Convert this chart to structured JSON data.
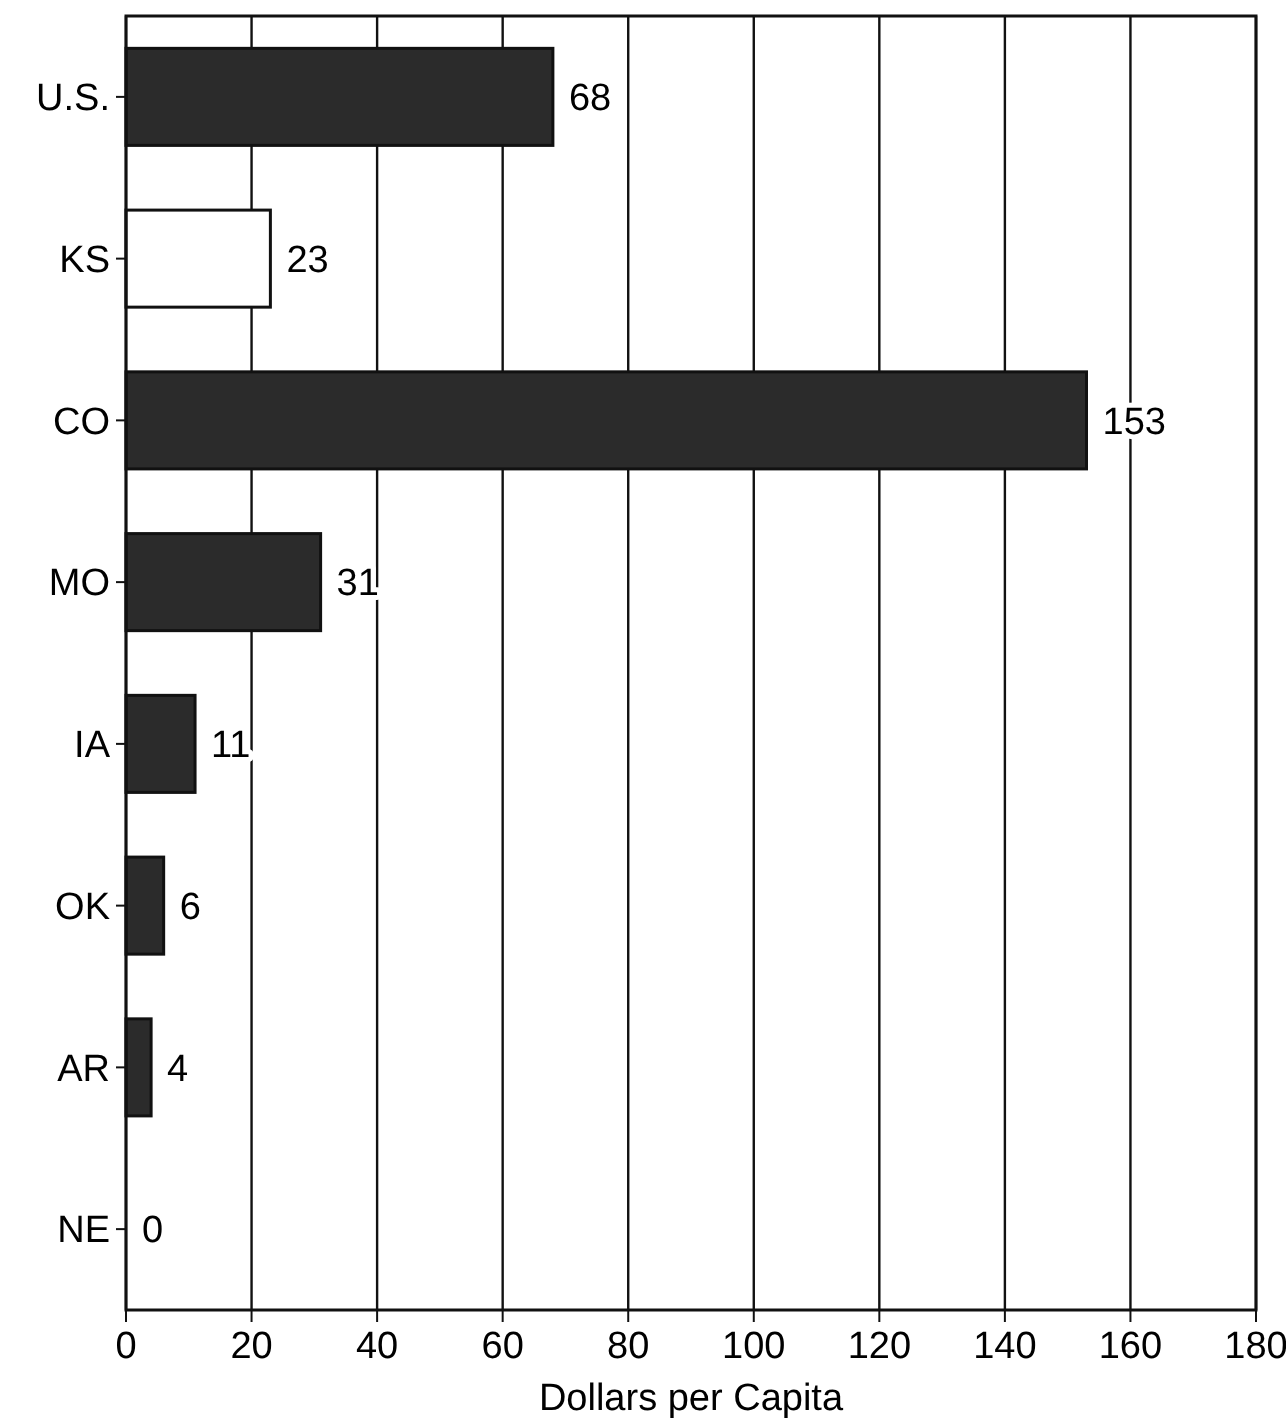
{
  "chart_data": {
    "type": "bar",
    "orientation": "horizontal",
    "xlabel": "Dollars per Capita",
    "categories": [
      "U.S.",
      "KS",
      "CO",
      "MO",
      "IA",
      "OK",
      "AR",
      "NE"
    ],
    "values": [
      68,
      23,
      153,
      31,
      11,
      6,
      4,
      0
    ],
    "colors": [
      "#2b2b2b",
      "#ffffff",
      "#2b2b2b",
      "#2b2b2b",
      "#2b2b2b",
      "#2b2b2b",
      "#2b2b2b",
      "#2b2b2b"
    ],
    "xlim": [
      0,
      180
    ],
    "xticks": [
      0,
      20,
      40,
      60,
      80,
      100,
      120,
      140,
      160,
      180
    ],
    "grid": "x",
    "data_labels": true
  }
}
